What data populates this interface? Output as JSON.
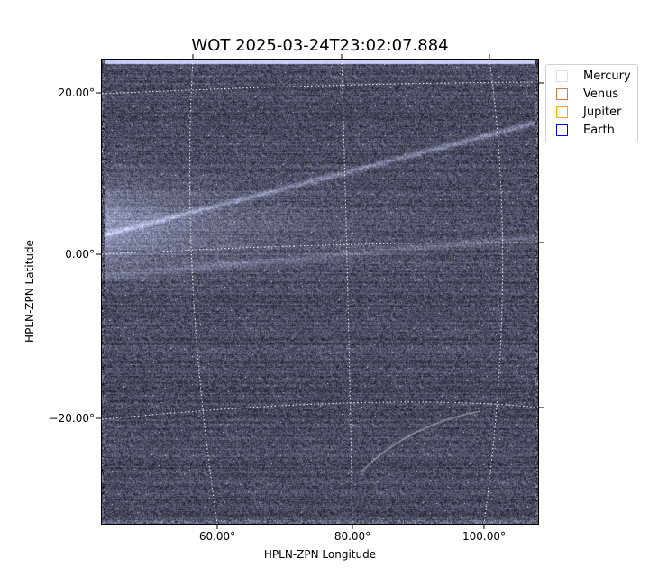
{
  "chart_data": {
    "type": "heatmap",
    "title": "WOT 2025-03-24T23:02:07.884",
    "xlabel": "HPLN-ZPN Longitude",
    "ylabel": "HPLN-ZPN Latitude",
    "x_ticks": [
      "60.00°",
      "80.00°",
      "100.00°"
    ],
    "y_ticks": [
      "20.00°",
      "0.00°",
      "−20.00°"
    ],
    "grid": "dotted white coordinate grid",
    "colormap": "bone (dark blue-grey to white)",
    "legend_position": "outside top-right",
    "legend": [
      {
        "label": "Mercury",
        "color": "#dddddd"
      },
      {
        "label": "Venus",
        "color": "#cd7f4b"
      },
      {
        "label": "Jupiter",
        "color": "#ffa500"
      },
      {
        "label": "Earth",
        "color": "#0000ff"
      }
    ]
  }
}
